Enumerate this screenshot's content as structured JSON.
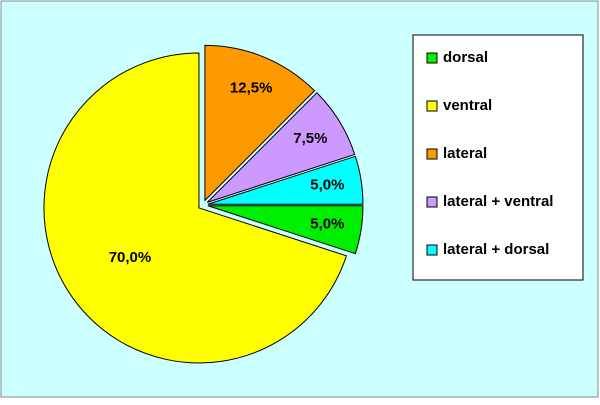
{
  "chart_data": {
    "type": "pie",
    "categories": [
      "dorsal",
      "ventral",
      "lateral",
      "lateral + ventral",
      "lateral + dorsal"
    ],
    "values": [
      5,
      70,
      12.5,
      7.5,
      5
    ],
    "value_labels": [
      "5,0%",
      "70,0%",
      "12,5%",
      "7,5%",
      "5,0%"
    ],
    "colors": [
      "#00ee00",
      "#ffff00",
      "#ff9900",
      "#cc99ff",
      "#00ffff"
    ],
    "legend": "right"
  }
}
